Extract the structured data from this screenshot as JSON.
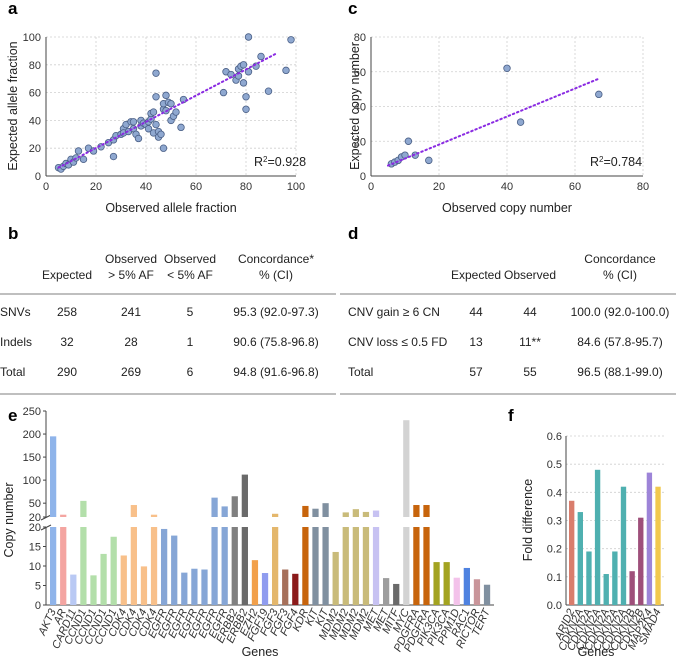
{
  "colors": {
    "dot": "#8fa8d0",
    "fit": "#8a2be2",
    "red": "#f4a5a1",
    "blue": "#8fb4ea",
    "lightblue": "#b9c9f4",
    "green": "#b3dfaa",
    "orange": "#f8c08a",
    "steel": "#86a6d6",
    "gray": "#808080",
    "darkgray": "#6a6a6a",
    "dorange": "#f2a04a",
    "lblue": "#8f9cef",
    "tan": "#e4b76c",
    "brown": "#a6705a",
    "darkred": "#8b1a1a",
    "rust": "#c7640c",
    "olive": "#c9bb7a",
    "lavender": "#c7c2f2",
    "mgray": "#9d9d9d",
    "lgray": "#d3d3d3",
    "olivegreen": "#a3a321",
    "pink": "#f3c2ea",
    "royal": "#4e82e0",
    "rose": "#c9959a",
    "bluegray": "#8090a0",
    "f_salmon": "#d97d6c",
    "f_teal": "#4fb0b0",
    "f_plum": "#9e4f7a",
    "f_lilac": "#9d84d8",
    "f_gold": "#f1c84e"
  },
  "chart_data": [
    {
      "panel": "a",
      "type": "scatter",
      "xlabel": "Observed allele fraction",
      "ylabel": "Expected allele fraction",
      "xlim": [
        0,
        100
      ],
      "ylim": [
        0,
        100
      ],
      "xticks": [
        "0",
        "20",
        "40",
        "60",
        "80",
        "100"
      ],
      "yticks": [
        "0",
        "20",
        "40",
        "60",
        "80",
        "100"
      ],
      "annotation_prefix": "R",
      "annotation_sup": "2",
      "annotation_value": "=0.928",
      "fit_line": {
        "x": [
          5,
          92
        ],
        "y": [
          6,
          88
        ]
      },
      "points": [
        [
          5,
          6
        ],
        [
          6,
          5
        ],
        [
          7,
          7
        ],
        [
          8,
          9
        ],
        [
          9,
          8
        ],
        [
          10,
          12
        ],
        [
          11,
          10
        ],
        [
          12,
          13
        ],
        [
          13,
          18
        ],
        [
          15,
          12
        ],
        [
          17,
          20
        ],
        [
          19,
          18
        ],
        [
          22,
          21
        ],
        [
          25,
          24
        ],
        [
          27,
          14
        ],
        [
          27,
          26
        ],
        [
          28,
          29
        ],
        [
          30,
          30
        ],
        [
          31,
          34
        ],
        [
          31,
          31
        ],
        [
          32,
          37
        ],
        [
          33,
          32
        ],
        [
          34,
          39
        ],
        [
          35,
          34
        ],
        [
          35,
          39
        ],
        [
          36,
          30
        ],
        [
          37,
          27
        ],
        [
          38,
          40
        ],
        [
          38,
          36
        ],
        [
          39,
          38
        ],
        [
          40,
          37
        ],
        [
          41,
          39
        ],
        [
          41,
          34
        ],
        [
          42,
          41
        ],
        [
          42,
          45
        ],
        [
          43,
          46
        ],
        [
          43,
          31
        ],
        [
          44,
          74
        ],
        [
          44,
          57
        ],
        [
          44,
          37
        ],
        [
          45,
          32
        ],
        [
          45,
          28
        ],
        [
          46,
          30
        ],
        [
          47,
          48
        ],
        [
          47,
          52
        ],
        [
          47,
          20
        ],
        [
          48,
          58
        ],
        [
          48,
          47
        ],
        [
          49,
          53
        ],
        [
          50,
          40
        ],
        [
          50,
          52
        ],
        [
          51,
          43
        ],
        [
          52,
          46
        ],
        [
          54,
          35
        ],
        [
          55,
          55
        ],
        [
          71,
          60
        ],
        [
          72,
          75
        ],
        [
          74,
          73
        ],
        [
          76,
          69
        ],
        [
          77,
          72
        ],
        [
          77,
          77
        ],
        [
          78,
          79
        ],
        [
          79,
          80
        ],
        [
          79,
          67
        ],
        [
          80,
          57
        ],
        [
          80,
          48
        ],
        [
          81,
          75
        ],
        [
          81,
          100
        ],
        [
          84,
          79
        ],
        [
          86,
          86
        ],
        [
          89,
          61
        ],
        [
          96,
          76
        ],
        [
          98,
          98
        ]
      ]
    },
    {
      "panel": "c",
      "type": "scatter",
      "xlabel": "Observed copy number",
      "ylabel": "Expected copy number",
      "xlim": [
        0,
        80
      ],
      "ylim": [
        0,
        80
      ],
      "xticks": [
        "0",
        "20",
        "40",
        "60",
        "80"
      ],
      "yticks": [
        "0",
        "20",
        "40",
        "60",
        "80"
      ],
      "annotation_prefix": "R",
      "annotation_sup": "2",
      "annotation_value": "=0.784",
      "fit_line": {
        "x": [
          5,
          67
        ],
        "y": [
          6,
          56
        ]
      },
      "points": [
        [
          6,
          7
        ],
        [
          7,
          8
        ],
        [
          8,
          9
        ],
        [
          9,
          11
        ],
        [
          10,
          12
        ],
        [
          11,
          20
        ],
        [
          13,
          12
        ],
        [
          17,
          9
        ],
        [
          40,
          62
        ],
        [
          44,
          31
        ],
        [
          67,
          47
        ]
      ]
    },
    {
      "panel": "e",
      "type": "bar",
      "xlabel": "Genes",
      "ylabel": "Copy number",
      "broken_axis": true,
      "lower_ylim": [
        0,
        20
      ],
      "upper_ylim": [
        20,
        250
      ],
      "lower_ticks": [
        "0",
        "5",
        "10",
        "15",
        "20"
      ],
      "upper_ticks": [
        "20",
        "50",
        "100",
        "150",
        "200",
        "250"
      ],
      "categories": [
        "AKT3",
        "AR",
        "CARD11",
        "CCND1",
        "CCND1",
        "CCND1",
        "CCND1",
        "CDK4",
        "CDK4",
        "CDK4",
        "CDK4",
        "EGFR",
        "EGFR",
        "EGFR",
        "EGFR",
        "EGFR",
        "EGFR",
        "EGFR",
        "ERBB2",
        "ERBB2",
        "EZH2",
        "FGF19",
        "FGF3",
        "FGF3",
        "FGF4",
        "KDR",
        "KIT",
        "KIT",
        "MDM2",
        "MDM2",
        "MDM2",
        "MDM2",
        "MET",
        "MET",
        "MITF",
        "MYC",
        "PDGFRA",
        "PDGFRA",
        "PIK3CA",
        "PIK3CA",
        "PPM1D",
        "RAC1",
        "RICTOR",
        "TERT"
      ],
      "values": [
        195,
        25,
        7.8,
        55,
        7.6,
        13.1,
        17.5,
        12.7,
        46,
        9.9,
        25,
        19.5,
        17.8,
        8.3,
        9.3,
        9.1,
        62,
        43,
        65,
        112,
        11.5,
        8.2,
        27,
        9.1,
        8.0,
        44,
        38,
        50,
        13.6,
        30,
        37,
        31,
        34,
        6.9,
        5.4,
        230,
        46,
        46,
        11,
        11,
        7.0,
        9.5,
        6.6,
        5.2
      ],
      "colorKeys": [
        "blue",
        "red",
        "lightblue",
        "green",
        "green",
        "green",
        "green",
        "orange",
        "orange",
        "orange",
        "orange",
        "steel",
        "steel",
        "steel",
        "steel",
        "steel",
        "steel",
        "steel",
        "gray",
        "darkgray",
        "dorange",
        "lblue",
        "tan",
        "brown",
        "darkred",
        "rust",
        "bluegray",
        "bluegray",
        "olive",
        "olive",
        "olive",
        "olive",
        "lavender",
        "mgray",
        "darkgray",
        "lgray",
        "rust",
        "rust",
        "olivegreen",
        "olivegreen",
        "pink",
        "royal",
        "rose",
        "bluegray"
      ]
    },
    {
      "panel": "f",
      "type": "bar",
      "xlabel": "Genes",
      "ylabel": "Fold difference",
      "ylim": [
        0,
        0.6
      ],
      "yticks": [
        "0.0",
        "0.1",
        "0.2",
        "0.3",
        "0.4",
        "0.5",
        "0.6"
      ],
      "categories": [
        "ARID2",
        "CDKN2A",
        "CDKN2A",
        "CDKN2A",
        "CDKN2A",
        "CDKN2A",
        "CDKN2A",
        "CDKN2B",
        "CDKN2B",
        "MAP2K4",
        "SMAD4"
      ],
      "values": [
        0.37,
        0.33,
        0.19,
        0.48,
        0.11,
        0.19,
        0.42,
        0.12,
        0.31,
        0.47,
        0.42
      ],
      "colorKeys": [
        "f_salmon",
        "f_teal",
        "f_teal",
        "f_teal",
        "f_teal",
        "f_teal",
        "f_teal",
        "f_plum",
        "f_plum",
        "f_lilac",
        "f_gold"
      ]
    }
  ],
  "panel_letters": {
    "a": "a",
    "b": "b",
    "c": "c",
    "d": "d",
    "e": "e",
    "f": "f"
  },
  "table_b": {
    "headers": [
      [
        "",
        ""
      ],
      [
        "Expected",
        ""
      ],
      [
        "Observed",
        "> 5% AF"
      ],
      [
        "Observed",
        "< 5% AF"
      ],
      [
        "Concordance*",
        "% (CI)"
      ]
    ],
    "rows": [
      [
        "SNVs",
        "258",
        "241",
        "5",
        "95.3 (92.0-97.3)"
      ],
      [
        "Indels",
        "32",
        "28",
        "1",
        "90.6 (75.8-96.8)"
      ],
      [
        "Total",
        "290",
        "269",
        "6",
        "94.8 (91.6-96.8)"
      ]
    ]
  },
  "table_d": {
    "headers": [
      [
        "",
        ""
      ],
      [
        "Expected",
        ""
      ],
      [
        "Observed",
        ""
      ],
      [
        "Concordance",
        "% (CI)"
      ]
    ],
    "rows": [
      [
        "CNV gain ≥ 6 CN",
        "44",
        "44",
        "100.0 (92.0-100.0)"
      ],
      [
        "CNV loss ≤ 0.5 FD",
        "13",
        "11**",
        "84.6 (57.8-95.7)"
      ],
      [
        "Total",
        "57",
        "55",
        "96.5 (88.1-99.0)"
      ]
    ]
  }
}
